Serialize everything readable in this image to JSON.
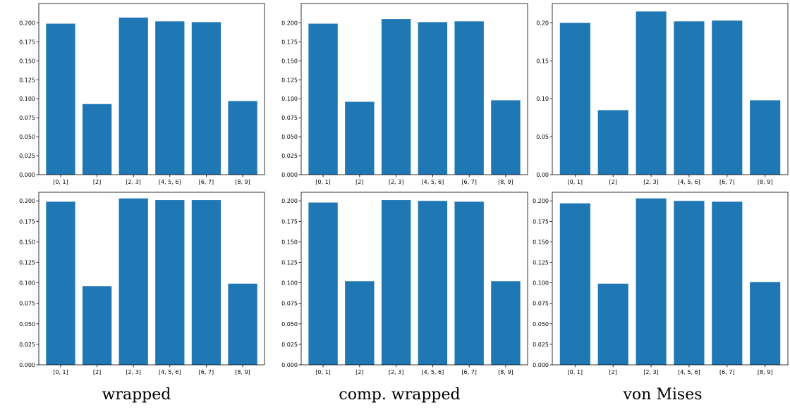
{
  "chart_data": [
    {
      "type": "bar",
      "categories": [
        "[0, 1]",
        "[2]",
        "[2, 3]",
        "[4, 5, 6]",
        "[6, 7]",
        "[8, 9]"
      ],
      "values": [
        0.199,
        0.093,
        0.207,
        0.202,
        0.201,
        0.097
      ],
      "ylim": [
        0,
        0.2255
      ],
      "yticks": [
        "0.000",
        "0.025",
        "0.050",
        "0.075",
        "0.100",
        "0.125",
        "0.150",
        "0.175",
        "0.200"
      ],
      "color": "#1f77b4"
    },
    {
      "type": "bar",
      "categories": [
        "[0, 1]",
        "[2]",
        "[2, 3]",
        "[4, 5, 6]",
        "[6, 7]",
        "[8, 9]"
      ],
      "values": [
        0.199,
        0.096,
        0.205,
        0.201,
        0.202,
        0.098
      ],
      "ylim": [
        0,
        0.2255
      ],
      "yticks": [
        "0.000",
        "0.025",
        "0.050",
        "0.075",
        "0.100",
        "0.125",
        "0.150",
        "0.175",
        "0.200"
      ],
      "color": "#1f77b4"
    },
    {
      "type": "bar",
      "categories": [
        "[0, 1]",
        "[2]",
        "[2, 3]",
        "[4, 5, 6]",
        "[6, 7]",
        "[8, 9]"
      ],
      "values": [
        0.2,
        0.085,
        0.215,
        0.202,
        0.203,
        0.098
      ],
      "ylim": [
        0,
        0.2255
      ],
      "yticks": [
        "0.00",
        "0.05",
        "0.10",
        "0.15",
        "0.20"
      ],
      "color": "#1f77b4"
    },
    {
      "type": "bar",
      "categories": [
        "[0, 1]",
        "[2]",
        "[2, 3]",
        "[4, 5, 6]",
        "[6, 7]",
        "[8, 9]"
      ],
      "values": [
        0.199,
        0.096,
        0.203,
        0.201,
        0.201,
        0.099
      ],
      "ylim": [
        0,
        0.2105
      ],
      "yticks": [
        "0.000",
        "0.025",
        "0.050",
        "0.075",
        "0.100",
        "0.125",
        "0.150",
        "0.175",
        "0.200"
      ],
      "color": "#1f77b4"
    },
    {
      "type": "bar",
      "categories": [
        "[0, 1]",
        "[2]",
        "[2, 3]",
        "[4, 5, 6]",
        "[6, 7]",
        "[8, 9]"
      ],
      "values": [
        0.198,
        0.102,
        0.201,
        0.2,
        0.199,
        0.102
      ],
      "ylim": [
        0,
        0.2105
      ],
      "yticks": [
        "0.000",
        "0.025",
        "0.050",
        "0.075",
        "0.100",
        "0.125",
        "0.150",
        "0.175",
        "0.200"
      ],
      "color": "#1f77b4"
    },
    {
      "type": "bar",
      "categories": [
        "[0, 1]",
        "[2]",
        "[2, 3]",
        "[4, 5, 6]",
        "[6, 7]",
        "[8, 9]"
      ],
      "values": [
        0.197,
        0.099,
        0.203,
        0.2,
        0.199,
        0.101
      ],
      "ylim": [
        0,
        0.2105
      ],
      "yticks": [
        "0.000",
        "0.025",
        "0.050",
        "0.075",
        "0.100",
        "0.125",
        "0.150",
        "0.175",
        "0.200"
      ],
      "color": "#1f77b4"
    }
  ],
  "captions": [
    "wrapped",
    "comp. wrapped",
    "von Mises"
  ]
}
